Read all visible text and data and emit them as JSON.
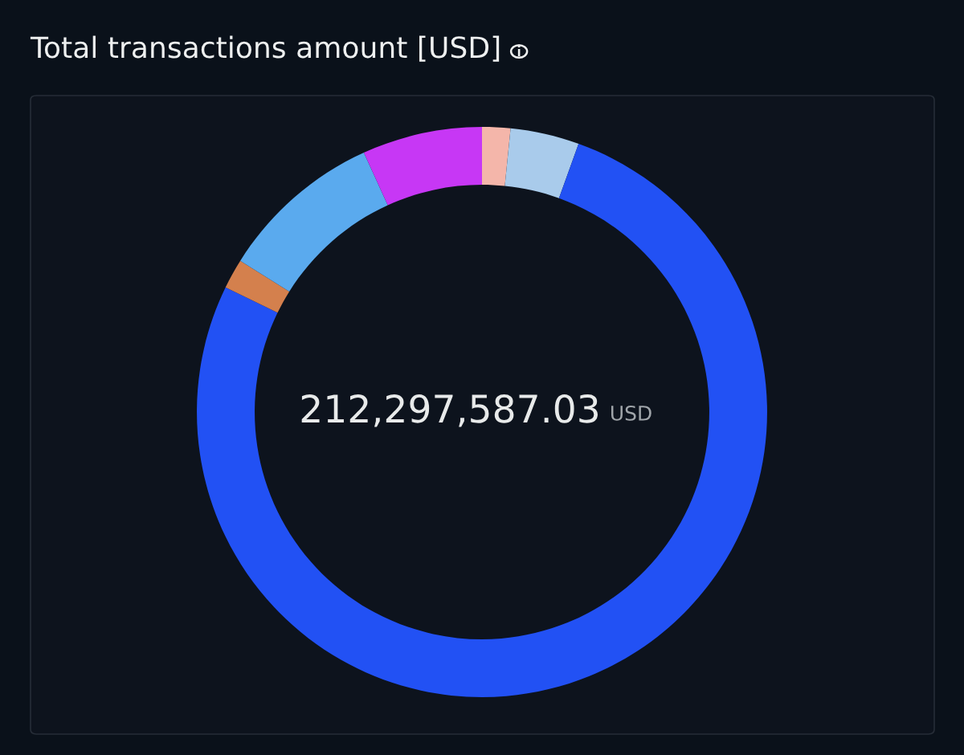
{
  "chart_data": {
    "type": "donut",
    "title": "Total transactions amount [USD]",
    "categories": [
      null,
      null,
      null,
      null,
      null,
      null
    ],
    "values": [
      1.6,
      3.9,
      76.7,
      1.7,
      9.3,
      6.8
    ],
    "colors": [
      "#f4b6aa",
      "#a9cbeb",
      "#2251f4",
      "#d4804d",
      "#5aaaee",
      "#c737f5"
    ],
    "annotations": [
      "212,297,587.03",
      "USD"
    ]
  }
}
